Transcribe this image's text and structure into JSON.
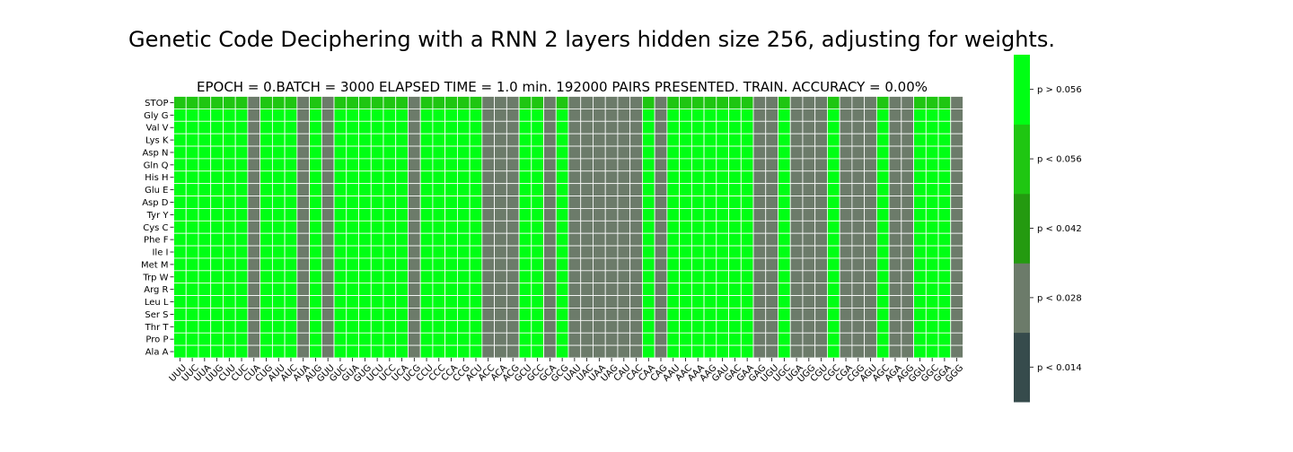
{
  "chart_data": {
    "type": "heatmap",
    "title": "Genetic Code Deciphering with a RNN 2 layers hidden size 256, adjusting for weights.",
    "subtitle": "EPOCH =  0.BATCH = 3000 ELAPSED TIME = 1.0 min.   192000 PAIRS PRESENTED.  TRAIN. ACCURACY = 0.00%",
    "x_labels": [
      "UUU",
      "UUC",
      "UUA",
      "UUG",
      "CUU",
      "CUC",
      "CUA",
      "CUG",
      "AUU",
      "AUC",
      "AUA",
      "AUG",
      "GUU",
      "GUC",
      "GUA",
      "GUG",
      "UCU",
      "UCC",
      "UCA",
      "UCG",
      "CCU",
      "CCC",
      "CCA",
      "CCG",
      "ACU",
      "ACC",
      "ACA",
      "ACG",
      "GCU",
      "GCC",
      "GCA",
      "GCG",
      "UAU",
      "UAC",
      "UAA",
      "UAG",
      "CAU",
      "CAC",
      "CAA",
      "CAG",
      "AAU",
      "AAC",
      "AAA",
      "AAG",
      "GAU",
      "GAC",
      "GAA",
      "GAG",
      "UGU",
      "UGC",
      "UGA",
      "UGG",
      "CGU",
      "CGC",
      "CGA",
      "CGG",
      "AGU",
      "AGC",
      "AGA",
      "AGG",
      "GGU",
      "GGC",
      "GGA",
      "GGG"
    ],
    "y_labels": [
      "STOP",
      "Gly G",
      "Val V",
      "Lys K",
      "Asp N",
      "Gln Q",
      "His H",
      "Glu E",
      "Asp D",
      "Tyr Y",
      "Cys C",
      "Phe F",
      "Ile I",
      "Met M",
      "Trp W",
      "Arg R",
      "Leu L",
      "Ser S",
      "Thr T",
      "Pro P",
      "Ala A"
    ],
    "column_levels": [
      4,
      4,
      4,
      4,
      4,
      4,
      1,
      4,
      4,
      4,
      1,
      4,
      1,
      4,
      4,
      4,
      4,
      4,
      4,
      1,
      4,
      4,
      4,
      4,
      4,
      1,
      1,
      1,
      4,
      4,
      1,
      4,
      1,
      1,
      1,
      1,
      1,
      1,
      4,
      1,
      4,
      4,
      4,
      4,
      4,
      4,
      4,
      1,
      1,
      4,
      1,
      1,
      1,
      4,
      1,
      1,
      1,
      4,
      1,
      1,
      4,
      4,
      4,
      1
    ],
    "stop_row_levels": [
      3,
      3,
      3,
      3,
      3,
      3,
      1,
      3,
      3,
      3,
      1,
      3,
      1,
      3,
      3,
      3,
      3,
      3,
      3,
      1,
      3,
      3,
      3,
      3,
      3,
      1,
      1,
      1,
      3,
      3,
      1,
      3,
      1,
      1,
      1,
      1,
      1,
      1,
      3,
      1,
      3,
      3,
      3,
      3,
      3,
      3,
      3,
      1,
      1,
      3,
      1,
      1,
      1,
      3,
      1,
      1,
      1,
      3,
      1,
      1,
      3,
      3,
      3,
      1
    ],
    "colorbar": {
      "colors": [
        "#364b4c",
        "#6c7b6a",
        "#249a10",
        "#1fc612",
        "#00ff14"
      ],
      "labels": [
        "p < 0.014",
        "p < 0.028",
        "p < 0.042",
        "p < 0.056",
        "p > 0.056"
      ]
    }
  }
}
